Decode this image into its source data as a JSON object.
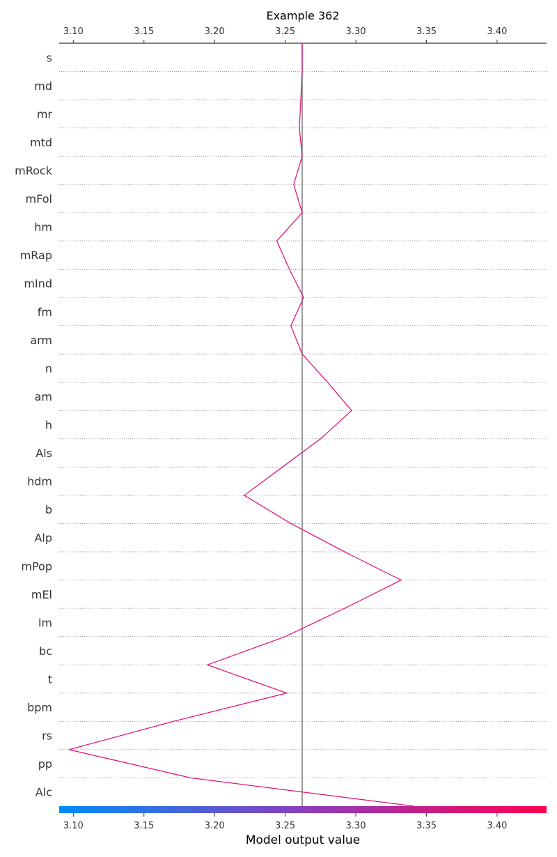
{
  "chart_data": {
    "type": "line",
    "title": "Example 362",
    "xlabel": "Model output value",
    "xlim": [
      3.09,
      3.435
    ],
    "xticks": [
      "3.10",
      "3.15",
      "3.20",
      "3.25",
      "3.30",
      "3.35",
      "3.40"
    ],
    "base_value": 3.262,
    "features": [
      "s",
      "md",
      "mr",
      "mtd",
      "mRock",
      "mFol",
      "hm",
      "mRap",
      "mInd",
      "fm",
      "arm",
      "n",
      "am",
      "h",
      "Als",
      "hdm",
      "b",
      "Alp",
      "mPop",
      "mEl",
      "lm",
      "bc",
      "t",
      "bpm",
      "rs",
      "pp",
      "Alc"
    ],
    "path_x": [
      3.262,
      3.262,
      3.261,
      3.26,
      3.262,
      3.256,
      3.262,
      3.244,
      3.253,
      3.263,
      3.254,
      3.262,
      3.28,
      3.297,
      3.275,
      3.248,
      3.221,
      3.254,
      3.292,
      3.332,
      3.292,
      3.25,
      3.195,
      3.251,
      3.171,
      3.097,
      3.183,
      3.341
    ],
    "line_color": "#e0157f",
    "base_line_color": "#808080",
    "colorbar": {
      "start": "#008bfb",
      "end": "#ff0051"
    },
    "grid": "dotted horizontal"
  }
}
